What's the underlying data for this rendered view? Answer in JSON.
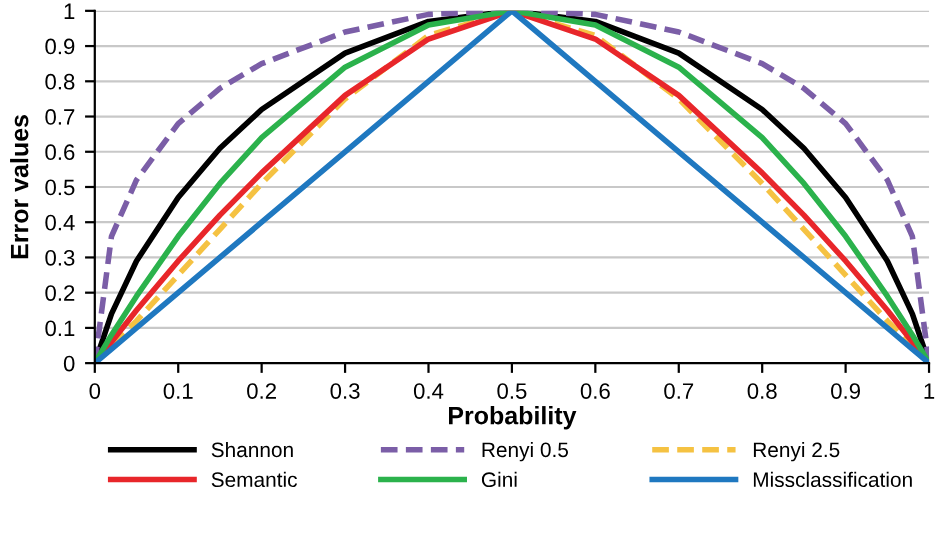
{
  "chart_data": {
    "type": "line",
    "xlabel": "Probability",
    "ylabel": "Error values",
    "x": [
      0,
      0.02,
      0.05,
      0.1,
      0.15,
      0.2,
      0.3,
      0.4,
      0.5,
      0.6,
      0.7,
      0.8,
      0.85,
      0.9,
      0.95,
      0.98,
      1
    ],
    "series": [
      {
        "name": "Shannon",
        "color": "#000000",
        "line_style": "solid",
        "values": [
          0,
          0.14,
          0.29,
          0.47,
          0.61,
          0.72,
          0.88,
          0.97,
          1,
          0.97,
          0.88,
          0.72,
          0.61,
          0.47,
          0.29,
          0.14,
          0
        ]
      },
      {
        "name": "Renyi 0.5",
        "color": "#7b5ea7",
        "line_style": "dashed",
        "values": [
          0,
          0.36,
          0.52,
          0.68,
          0.78,
          0.85,
          0.94,
          0.99,
          1,
          0.99,
          0.94,
          0.85,
          0.78,
          0.68,
          0.52,
          0.36,
          0
        ]
      },
      {
        "name": "Renyi 2.5",
        "color": "#f5c242",
        "line_style": "dashed",
        "values": [
          0,
          0.05,
          0.12,
          0.25,
          0.38,
          0.51,
          0.75,
          0.93,
          1,
          0.93,
          0.75,
          0.51,
          0.38,
          0.25,
          0.12,
          0.05,
          0
        ]
      },
      {
        "name": "Semantic",
        "color": "#e8262a",
        "line_style": "solid",
        "values": [
          0,
          0.06,
          0.15,
          0.29,
          0.42,
          0.54,
          0.76,
          0.92,
          1,
          0.92,
          0.76,
          0.54,
          0.42,
          0.29,
          0.15,
          0.06,
          0
        ]
      },
      {
        "name": "Gini",
        "color": "#2bb24c",
        "line_style": "solid",
        "values": [
          0,
          0.08,
          0.19,
          0.36,
          0.51,
          0.64,
          0.84,
          0.96,
          1,
          0.96,
          0.84,
          0.64,
          0.51,
          0.36,
          0.19,
          0.08,
          0
        ]
      },
      {
        "name": "Missclassification",
        "color": "#1f78c0",
        "line_style": "solid",
        "values": [
          0,
          0.04,
          0.1,
          0.2,
          0.3,
          0.4,
          0.6,
          0.8,
          1,
          0.8,
          0.6,
          0.4,
          0.3,
          0.2,
          0.1,
          0.04,
          0
        ]
      }
    ],
    "xlim": [
      0,
      1
    ],
    "ylim": [
      0,
      1
    ],
    "xticks": [
      0,
      0.1,
      0.2,
      0.3,
      0.4,
      0.5,
      0.6,
      0.7,
      0.8,
      0.9,
      1
    ],
    "yticks": [
      0,
      0.1,
      0.2,
      0.3,
      0.4,
      0.5,
      0.6,
      0.7,
      0.8,
      0.9,
      1
    ],
    "grid": "y",
    "legend": "bottom"
  }
}
